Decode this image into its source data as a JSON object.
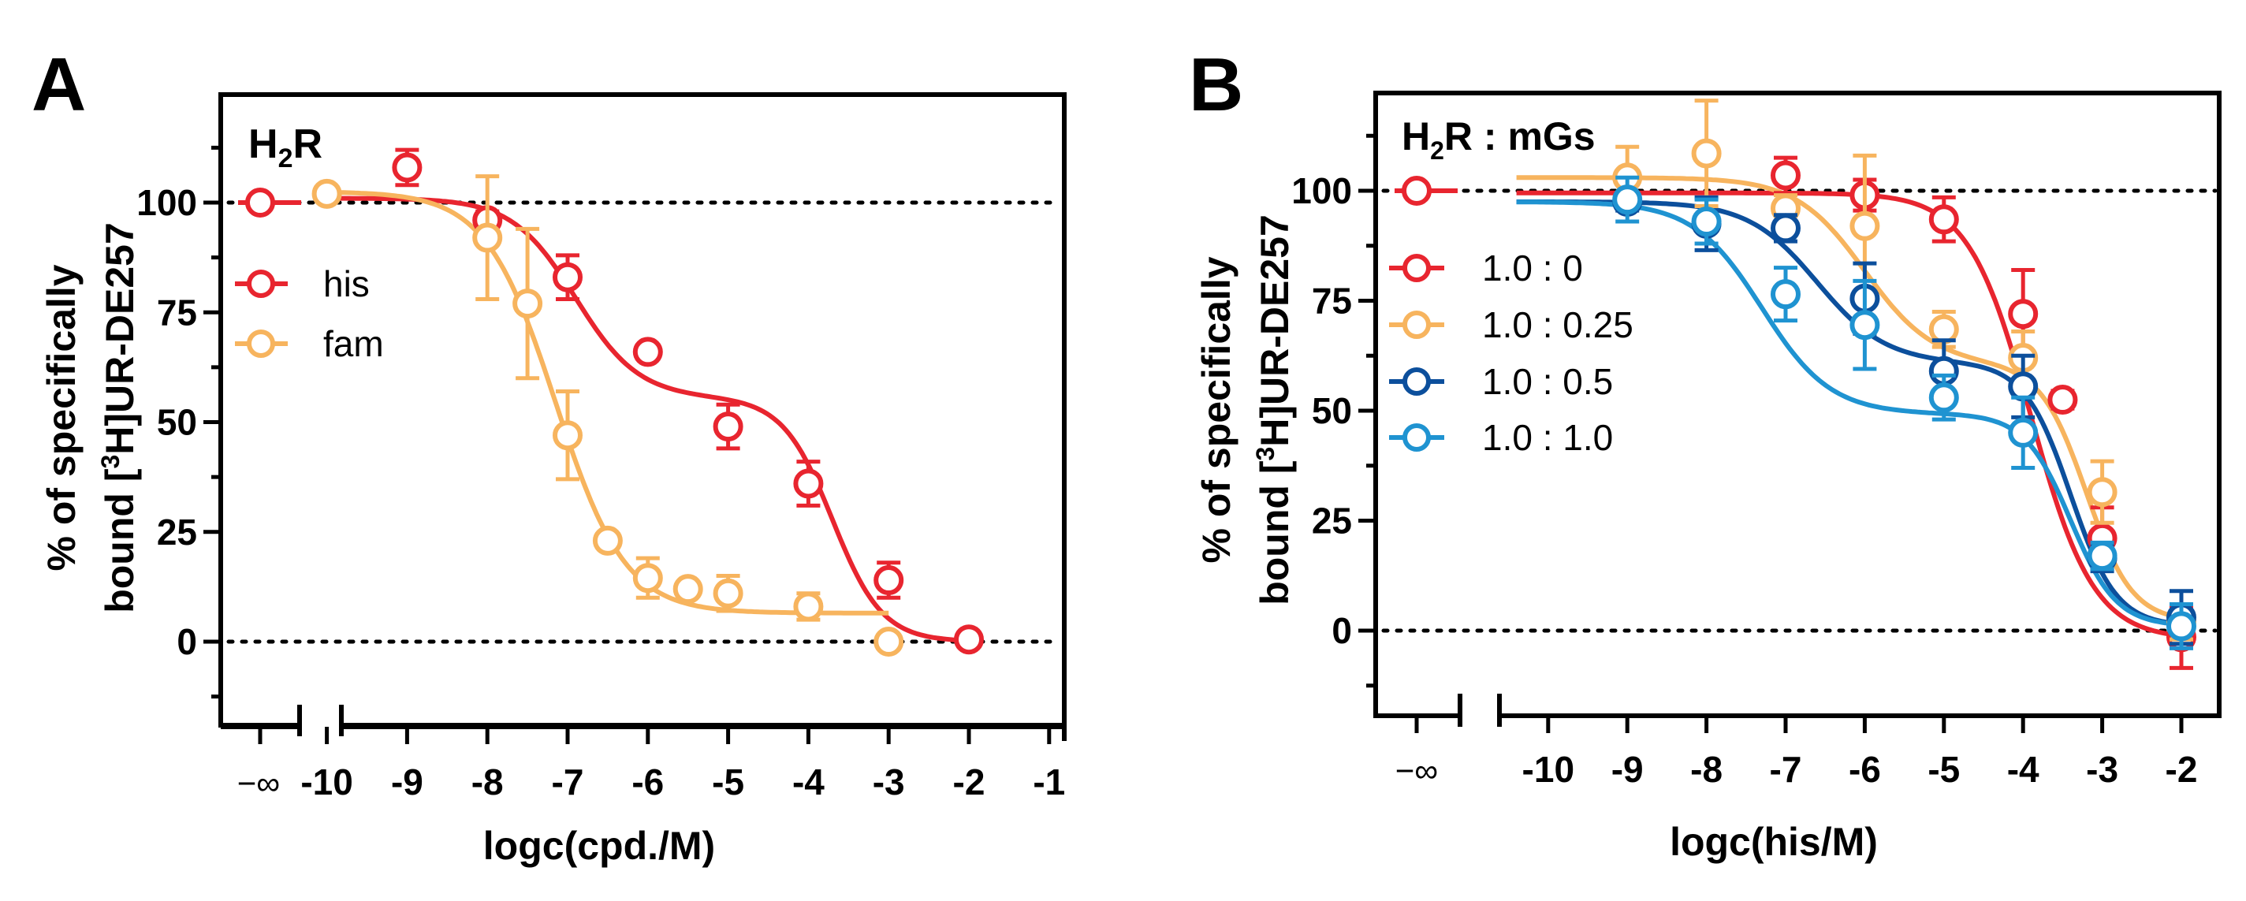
{
  "figure": {
    "panel_letters": [
      "A",
      "B"
    ]
  },
  "chart_data": [
    {
      "type": "line",
      "panel": "A",
      "title": "H2R",
      "title_main": "H",
      "title_sub": "2",
      "title_rest": "R",
      "xlabel": "logc(cpd./M)",
      "ylabel_line1": "% of specifically",
      "ylabel_line2_pre": "bound [",
      "ylabel_line2_sup": "3",
      "ylabel_line2_post": "H]UR-DE257",
      "ylim": [
        -18,
        124
      ],
      "xlim": [
        -10.7,
        -0.7
      ],
      "x_ticks": [
        -10,
        -9,
        -8,
        -7,
        -6,
        -5,
        -4,
        -3,
        -2,
        -1
      ],
      "x_tick_labels": [
        "-10",
        "-9",
        "-8",
        "-7",
        "-6",
        "-5",
        "-4",
        "-3",
        "-2",
        "-1"
      ],
      "y_ticks": [
        0,
        25,
        50,
        75,
        100
      ],
      "y_tick_labels": [
        "0",
        "25",
        "50",
        "75",
        "100"
      ],
      "minus_inf_label": "−∞",
      "reference_lines": [
        0,
        100
      ],
      "series": [
        {
          "name": "his",
          "color": "#e8252f",
          "x": [
            -9,
            -8,
            -7,
            -6,
            -5,
            -4,
            -3,
            -2
          ],
          "y": [
            108,
            96,
            83,
            66,
            49,
            36,
            14,
            0.5
          ],
          "err": [
            4,
            2,
            5,
            1.5,
            5,
            5,
            4,
            1
          ],
          "minus_inf_y": 100,
          "fit": {
            "top": 101,
            "bottom": 0,
            "frac": 0.45,
            "ec1": -6.9,
            "ec2": -3.7,
            "h1": 1.1,
            "h2": 1.4
          },
          "fit_range": [
            -10,
            -2
          ]
        },
        {
          "name": "fam",
          "color": "#f7b45e",
          "x": [
            -10,
            -8,
            -7.5,
            -7,
            -6.5,
            -6,
            -5.5,
            -5,
            -4,
            -3
          ],
          "y": [
            102,
            92,
            77,
            47,
            23,
            14.5,
            12,
            11,
            8,
            0
          ],
          "err": [
            1,
            14,
            17,
            10,
            1.5,
            4.5,
            1.5,
            4,
            3,
            1
          ],
          "fit": {
            "top": 102.5,
            "bottom": 6.5,
            "ec": -7.15,
            "h": 1.0
          },
          "fit_range": [
            -10,
            -3
          ]
        }
      ]
    },
    {
      "type": "line",
      "panel": "B",
      "title": "H2R : mGs",
      "title_main": "H",
      "title_sub": "2",
      "title_rest": "R : mGs",
      "xlabel": "logc(his/M)",
      "ylabel_line1": "% of specifically",
      "ylabel_line2_pre": "bound [",
      "ylabel_line2_sup": "3",
      "ylabel_line2_post": "H]UR-DE257",
      "ylim": [
        -19,
        126
      ],
      "xlim": [
        -10.45,
        -1.75
      ],
      "x_ticks": [
        -10,
        -9,
        -8,
        -7,
        -6,
        -5,
        -4,
        -3,
        -2
      ],
      "x_tick_labels": [
        "-10",
        "-9",
        "-8",
        "-7",
        "-6",
        "-5",
        "-4",
        "-3",
        "-2"
      ],
      "y_ticks": [
        0,
        25,
        50,
        75,
        100
      ],
      "y_tick_labels": [
        "0",
        "25",
        "50",
        "75",
        "100"
      ],
      "minus_inf_label": "−∞",
      "reference_lines": [
        0,
        100
      ],
      "series": [
        {
          "name": "1.0 : 0",
          "color": "#e8252f",
          "x": [
            -7,
            -6,
            -5,
            -4,
            -3.5,
            -3,
            -2
          ],
          "y": [
            103.5,
            99,
            93.5,
            72,
            52.5,
            21,
            -1.5
          ],
          "err": [
            4,
            3.5,
            5,
            10,
            2,
            7,
            7
          ],
          "minus_inf_y": 100,
          "fit": {
            "top": 99.5,
            "bottom": -2,
            "ec": -3.9,
            "h": 1.1
          },
          "fit_range": [
            -10.4,
            -2
          ]
        },
        {
          "name": "1.0 : 0.25",
          "color": "#f7b45e",
          "x": [
            -9,
            -8,
            -7,
            -6,
            -5,
            -4,
            -3,
            -2
          ],
          "y": [
            103,
            108.5,
            96,
            92,
            68.5,
            62,
            31.5,
            2
          ],
          "err": [
            7,
            12,
            3,
            16,
            4,
            6,
            7,
            4
          ],
          "fit": {
            "top": 103,
            "bottom": 2,
            "frac": 0.42,
            "ec1": -6.0,
            "ec2": -3.2,
            "h1": 1.0,
            "h2": 1.5
          },
          "fit_range": [
            -10.4,
            -2
          ]
        },
        {
          "name": "1.0 : 0.5",
          "color": "#0c4f9c",
          "x": [
            -9,
            -8,
            -7,
            -6,
            -5,
            -4,
            -3,
            -2
          ],
          "y": [
            97.5,
            92.5,
            91.5,
            75.5,
            59,
            55.5,
            16.5,
            3
          ],
          "err": [
            2,
            6,
            3,
            8,
            7,
            7,
            3,
            6
          ],
          "fit": {
            "top": 97.5,
            "bottom": 1,
            "frac": 0.38,
            "ec1": -6.6,
            "ec2": -3.4,
            "h1": 1.0,
            "h2": 1.5
          },
          "fit_range": [
            -10.4,
            -2
          ]
        },
        {
          "name": "1.0 : 1.0",
          "color": "#1f93d1",
          "x": [
            -9,
            -8,
            -7,
            -6,
            -5,
            -4,
            -3,
            -2
          ],
          "y": [
            98,
            93,
            76.5,
            69.5,
            53,
            45,
            17,
            1
          ],
          "err": [
            5,
            5,
            6,
            10,
            5,
            8,
            3,
            5
          ],
          "fit": {
            "top": 97.5,
            "bottom": 1,
            "frac": 0.5,
            "ec1": -7.3,
            "ec2": -3.4,
            "h1": 1.0,
            "h2": 1.5
          },
          "fit_range": [
            -10.4,
            -2
          ]
        }
      ]
    }
  ]
}
